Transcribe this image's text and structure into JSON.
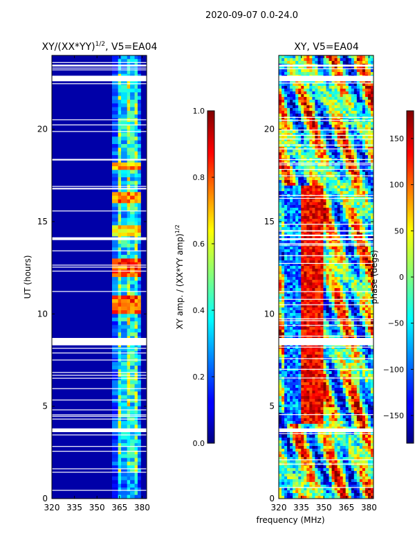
{
  "figure": {
    "suptitle": "2020-09-07 0.0-24.0",
    "xlabel": "frequency (MHz)"
  },
  "chart_data": [
    {
      "type": "heatmap",
      "title_base": "XY/(XX*YY)",
      "title_sup": "1/2",
      "title_tail": ", V5=EA04",
      "ylabel": "UT (hours)",
      "xlim": [
        320,
        383
      ],
      "ylim": [
        0,
        24
      ],
      "xticks": [
        "320",
        "335",
        "350",
        "365",
        "380"
      ],
      "yticks": [
        "0",
        "5",
        "10",
        "15",
        "20"
      ],
      "colorbar": {
        "label_base": "XY amp. / (XX*YY amp)",
        "label_sup": "1/2",
        "range": [
          0.0,
          1.0
        ],
        "ticks": [
          "0.0",
          "0.2",
          "0.4",
          "0.6",
          "0.8",
          "1.0"
        ]
      },
      "background_value": 0.04,
      "bands": [
        {
          "from": 360,
          "to": 364,
          "value": 0.25
        },
        {
          "from": 364,
          "to": 366,
          "value": 0.55
        },
        {
          "from": 366,
          "to": 370,
          "value": 0.4
        },
        {
          "from": 370,
          "to": 372,
          "value": 0.6
        },
        {
          "from": 372,
          "to": 375,
          "value": 0.45
        },
        {
          "from": 375,
          "to": 377,
          "value": 0.55
        },
        {
          "from": 377,
          "to": 379,
          "value": 0.3
        }
      ],
      "bright_hours": [
        {
          "from": 10.0,
          "to": 11.0,
          "value": 0.85
        },
        {
          "from": 12.0,
          "to": 13.0,
          "value": 0.85
        },
        {
          "from": 14.2,
          "to": 14.8,
          "value": 0.7
        },
        {
          "from": 16.0,
          "to": 16.6,
          "value": 0.8
        },
        {
          "from": 17.8,
          "to": 18.2,
          "value": 0.75
        }
      ],
      "data_gaps_hours": [
        [
          3.6,
          3.8
        ],
        [
          8.3,
          8.7
        ],
        [
          14.0,
          14.1
        ],
        [
          22.6,
          22.9
        ],
        [
          23.4,
          23.5
        ]
      ]
    },
    {
      "type": "heatmap",
      "title": "XY, V5=EA04",
      "xlim": [
        320,
        383
      ],
      "ylim": [
        0,
        24
      ],
      "xticks": [
        "320",
        "335",
        "350",
        "365",
        "380"
      ],
      "yticks": [
        "0",
        "5",
        "10",
        "15",
        "20"
      ],
      "colorbar": {
        "label": "phase (degs)",
        "range": [
          -180,
          180
        ],
        "ticks": [
          "−150",
          "−100",
          "−50",
          "0",
          "50",
          "100",
          "150"
        ]
      },
      "data_gaps_hours": [
        [
          3.6,
          3.8
        ],
        [
          8.3,
          8.7
        ],
        [
          14.0,
          14.1
        ],
        [
          22.6,
          22.9
        ],
        [
          23.4,
          23.5
        ]
      ]
    }
  ]
}
